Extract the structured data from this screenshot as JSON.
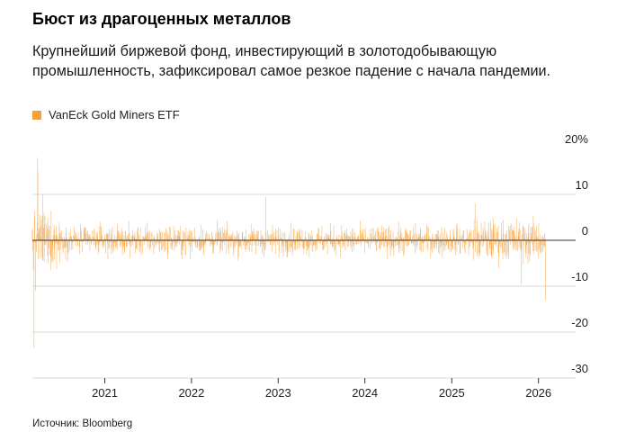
{
  "header": {
    "title": "Бюст из драгоценных металлов",
    "subtitle": "Крупнейший биржевой фонд, инвестирующий в золотодобывающую промышленность, зафиксировал самое резкое падение с начала пандемии."
  },
  "legend": {
    "label": "VanEck Gold Miners ETF",
    "color": "#f6a03c"
  },
  "footer": {
    "source": "Источник: Bloomberg"
  },
  "chart_data": {
    "type": "bar",
    "series": [
      {
        "name": "VanEck Gold Miners ETF",
        "color": "#f6a03c",
        "x_start": "2020-03-02",
        "x_end": "2026-01-30",
        "frequency": "trading days",
        "notable_points": [
          {
            "x": "2020-03-09",
            "y": -23.5
          },
          {
            "x": "2020-03-16",
            "y": -11
          },
          {
            "x": "2020-03-24",
            "y": 18
          },
          {
            "x": "2020-03-25",
            "y": 15
          },
          {
            "x": "2020-04-15",
            "y": 10
          },
          {
            "x": "2022-11-10",
            "y": 9.5
          },
          {
            "x": "2025-04-09",
            "y": 8
          },
          {
            "x": "2025-10-21",
            "y": -9.5
          },
          {
            "x": "2026-01-30",
            "y": -13
          }
        ],
        "typical_range": [
          -4,
          4
        ]
      }
    ],
    "y_axis": {
      "ylim": [
        -30,
        20
      ],
      "ticks": [
        {
          "value": 20,
          "label": "20%"
        },
        {
          "value": 10,
          "label": "10"
        },
        {
          "value": 0,
          "label": "0"
        },
        {
          "value": -10,
          "label": "-10"
        },
        {
          "value": -20,
          "label": "-20"
        },
        {
          "value": -30,
          "label": "-30"
        }
      ],
      "position": "right"
    },
    "x_axis": {
      "xlim": [
        "2020-03-02",
        "2026-02-28"
      ],
      "ticks": [
        {
          "value": "2021-01-01",
          "label": "2021"
        },
        {
          "value": "2022-01-01",
          "label": "2022"
        },
        {
          "value": "2023-01-01",
          "label": "2023"
        },
        {
          "value": "2024-01-01",
          "label": "2024"
        },
        {
          "value": "2025-01-01",
          "label": "2025"
        },
        {
          "value": "2026-01-01",
          "label": "2026"
        }
      ]
    },
    "grid": "horizontal",
    "legend_position": "top-left"
  }
}
